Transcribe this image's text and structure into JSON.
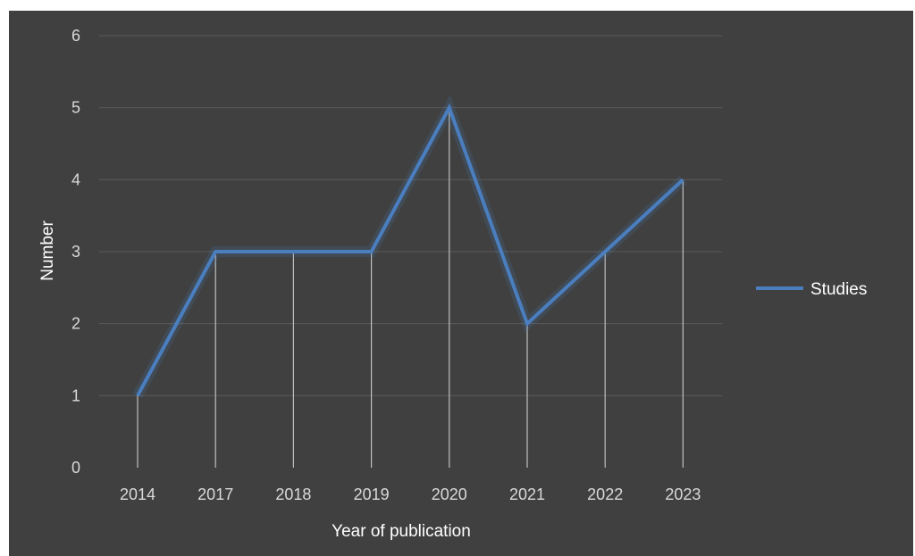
{
  "chart_data": {
    "type": "line",
    "categories": [
      "2014",
      "2017",
      "2018",
      "2019",
      "2020",
      "2021",
      "2022",
      "2023"
    ],
    "series": [
      {
        "name": "Studies",
        "values": [
          1,
          3,
          3,
          3,
          5,
          2,
          3,
          4
        ],
        "color": "#4a7ebf"
      }
    ],
    "title": "",
    "xlabel": "Year of publication",
    "ylabel": "Number",
    "ylim": [
      0,
      6
    ],
    "yticks": [
      "0",
      "1",
      "2",
      "3",
      "4",
      "5",
      "6"
    ],
    "grid": true,
    "drop_lines": true,
    "legend_position": "right",
    "background_color": "#404040"
  }
}
